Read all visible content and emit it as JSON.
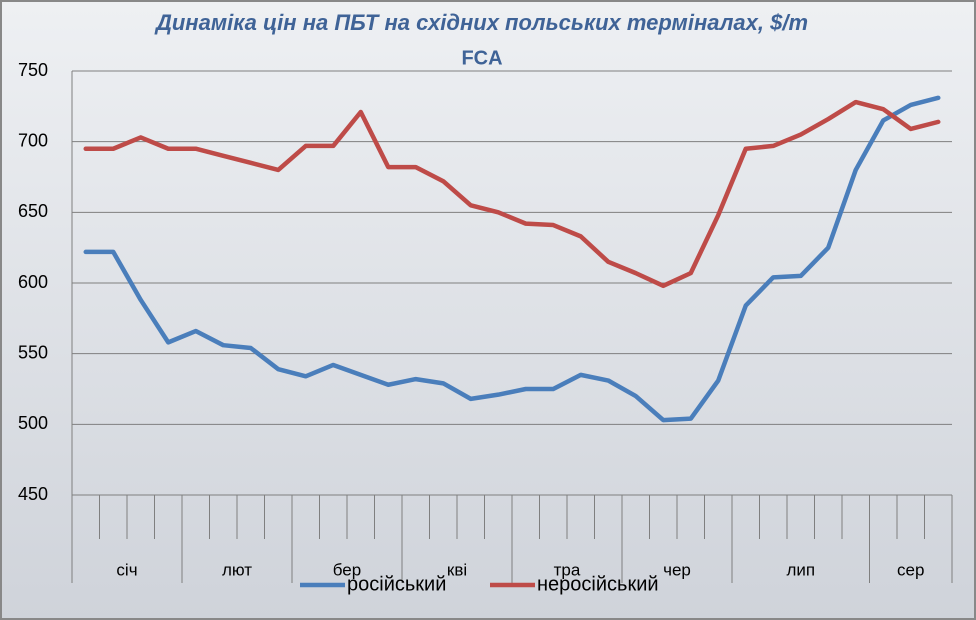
{
  "chart_data": {
    "type": "line",
    "title": "Динаміка цін на ПБТ на східних польських терміналах, $/т",
    "subtitle": "FCA",
    "categories": [
      null,
      null,
      null,
      null,
      null,
      null,
      null,
      null,
      null,
      null,
      null,
      null,
      null,
      null,
      null,
      null,
      null,
      null,
      null,
      null,
      null,
      null,
      null,
      null,
      null,
      null,
      null,
      null,
      null,
      null,
      null,
      null
    ],
    "groups": [
      {
        "label": "січ",
        "count": 4
      },
      {
        "label": "лют",
        "count": 4
      },
      {
        "label": "бер",
        "count": 4
      },
      {
        "label": "кві",
        "count": 4
      },
      {
        "label": "тра",
        "count": 4
      },
      {
        "label": "чер",
        "count": 4
      },
      {
        "label": "лип",
        "count": 5
      },
      {
        "label": "сер",
        "count": 3
      }
    ],
    "series": [
      {
        "name": "російський",
        "color": "#4a7ebb",
        "values": [
          622,
          622,
          588,
          558,
          566,
          556,
          554,
          539,
          534,
          542,
          535,
          528,
          532,
          529,
          518,
          521,
          525,
          525,
          535,
          531,
          520,
          503,
          504,
          531,
          584,
          604,
          605,
          625,
          680,
          715,
          726,
          731
        ]
      },
      {
        "name": "неросійський",
        "color": "#be4b48",
        "values": [
          695,
          695,
          703,
          695,
          695,
          690,
          685,
          680,
          697,
          697,
          721,
          682,
          682,
          672,
          655,
          650,
          642,
          641,
          633,
          615,
          607,
          598,
          607,
          648,
          695,
          697,
          705,
          716,
          728,
          723,
          709,
          714
        ]
      }
    ],
    "ylim": [
      450,
      750
    ],
    "yticks": [
      450,
      500,
      550,
      600,
      650,
      700,
      750
    ],
    "grid": true,
    "legend": "bottom"
  }
}
